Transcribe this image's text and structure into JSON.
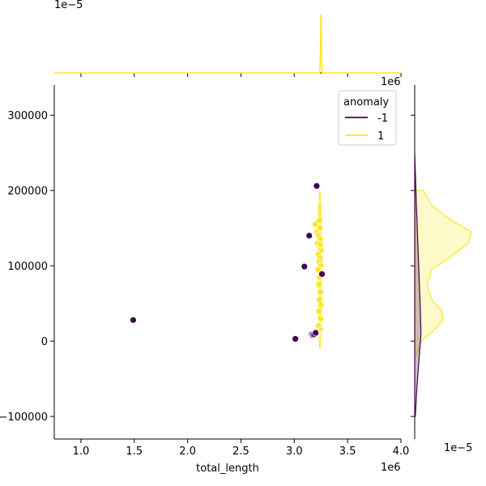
{
  "chart_data": {
    "type": "scatter",
    "subtype": "jointplot",
    "title": "",
    "xlabel": "total_length",
    "ylabel": "",
    "x_offset_label": "1e6",
    "y_offset_label": "1e6",
    "top_marginal_offset_label": "1e−5",
    "right_marginal_offset_label": "1e−5",
    "xlim": [
      750000,
      4000000
    ],
    "ylim": [
      -130000,
      340000
    ],
    "x_ticks": [
      1000000,
      1500000,
      2000000,
      2500000,
      3000000,
      3500000,
      4000000
    ],
    "x_tick_labels": [
      "1.0",
      "1.5",
      "2.0",
      "2.5",
      "3.0",
      "3.5",
      "4.0"
    ],
    "y_ticks": [
      -100000,
      0,
      100000,
      200000,
      300000
    ],
    "y_tick_labels": [
      "−100000",
      "0",
      "100000",
      "200000",
      "300000"
    ],
    "grid": false,
    "legend": {
      "title": "anomaly",
      "placement": "top-right",
      "entries": [
        {
          "label": "-1",
          "color": "#440154"
        },
        {
          "label": "1",
          "color": "#fde725"
        }
      ]
    },
    "series": [
      {
        "name": "-1",
        "color": "#440154",
        "points": [
          {
            "x": 1490000,
            "y": 28000
          },
          {
            "x": 3010000,
            "y": 3000
          },
          {
            "x": 3095000,
            "y": 99000
          },
          {
            "x": 3140000,
            "y": 140000
          },
          {
            "x": 3210000,
            "y": 206000
          },
          {
            "x": 3260000,
            "y": 89000
          },
          {
            "x": 3165000,
            "y": 9000
          },
          {
            "x": 3175000,
            "y": 8000
          },
          {
            "x": 3185000,
            "y": 9000
          },
          {
            "x": 3200000,
            "y": 11000
          }
        ]
      },
      {
        "name": "1",
        "color": "#fde725",
        "points": [
          {
            "x": 3200000,
            "y": 155000
          },
          {
            "x": 3215000,
            "y": 145000
          },
          {
            "x": 3240000,
            "y": 150000
          },
          {
            "x": 3230000,
            "y": 140000
          },
          {
            "x": 3245000,
            "y": 135000
          },
          {
            "x": 3220000,
            "y": 130000
          },
          {
            "x": 3238000,
            "y": 125000
          },
          {
            "x": 3250000,
            "y": 120000
          },
          {
            "x": 3228000,
            "y": 115000
          },
          {
            "x": 3242000,
            "y": 110000
          },
          {
            "x": 3235000,
            "y": 105000
          },
          {
            "x": 3248000,
            "y": 100000
          },
          {
            "x": 3225000,
            "y": 95000
          },
          {
            "x": 3240000,
            "y": 85000
          },
          {
            "x": 3232000,
            "y": 75000
          },
          {
            "x": 3246000,
            "y": 65000
          },
          {
            "x": 3238000,
            "y": 55000
          },
          {
            "x": 3250000,
            "y": 48000
          },
          {
            "x": 3232000,
            "y": 40000
          },
          {
            "x": 3245000,
            "y": 30000
          },
          {
            "x": 3228000,
            "y": 20000
          },
          {
            "x": 3240000,
            "y": 15000
          },
          {
            "x": 3220000,
            "y": 12000
          },
          {
            "x": 3210000,
            "y": 10000
          },
          {
            "x": 3236000,
            "y": 160000
          },
          {
            "x": 3244000,
            "y": 128000
          }
        ]
      }
    ],
    "joint_kde": {
      "-1": {
        "color": "#440154",
        "center_x": 3180000,
        "center_y": 8000,
        "rx": 22000,
        "ry": 4000
      },
      "1": {
        "color": "#fde725",
        "center_x": 3240000,
        "center_y": 95000,
        "rx": 15000,
        "ry": 105000
      }
    },
    "top_marginal": {
      "series": [
        {
          "name": "1",
          "color": "#fde725",
          "peak_x": 3250000,
          "width": 8000
        }
      ]
    },
    "right_marginal": {
      "series": [
        {
          "name": "1",
          "color": "#fde725",
          "profile": [
            [
              200000,
              0.15
            ],
            [
              180000,
              0.3
            ],
            [
              160000,
              0.65
            ],
            [
              145000,
              1.0
            ],
            [
              130000,
              0.95
            ],
            [
              110000,
              0.6
            ],
            [
              95000,
              0.3
            ],
            [
              75000,
              0.22
            ],
            [
              55000,
              0.3
            ],
            [
              40000,
              0.48
            ],
            [
              28000,
              0.5
            ],
            [
              15000,
              0.35
            ],
            [
              0,
              0.12
            ],
            [
              -20000,
              0.02
            ]
          ]
        },
        {
          "name": "-1",
          "color": "#440154",
          "profile": [
            [
              250000,
              0.0
            ],
            [
              180000,
              0.03
            ],
            [
              120000,
              0.06
            ],
            [
              80000,
              0.08
            ],
            [
              40000,
              0.1
            ],
            [
              10000,
              0.11
            ],
            [
              -20000,
              0.08
            ],
            [
              -60000,
              0.04
            ],
            [
              -100000,
              0.01
            ]
          ]
        }
      ]
    }
  }
}
